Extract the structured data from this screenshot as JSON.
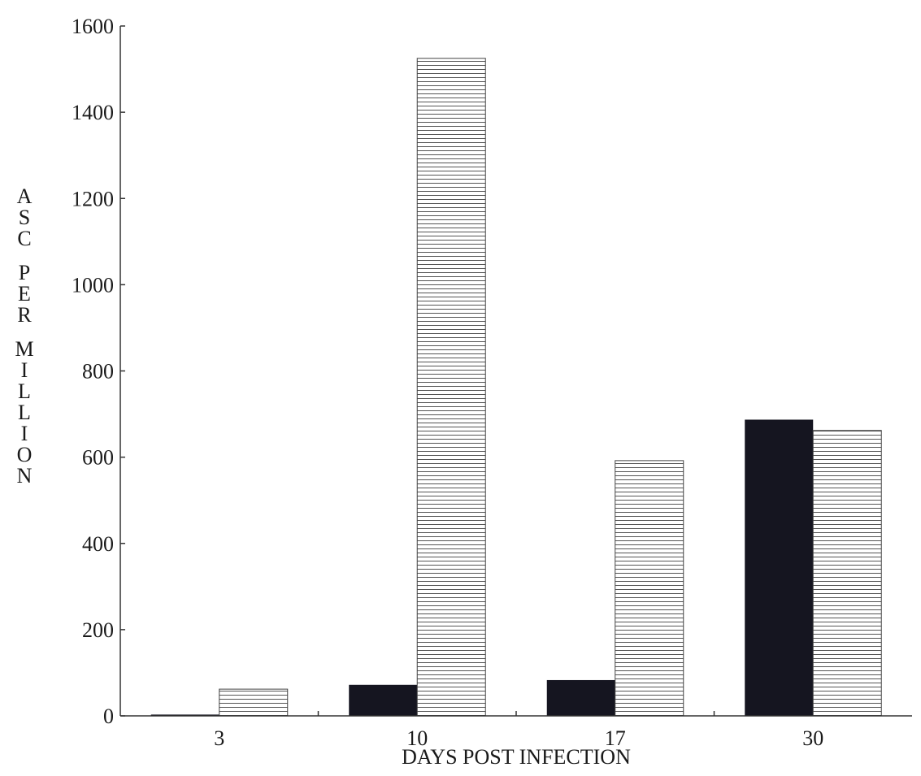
{
  "chart_data": {
    "type": "bar",
    "title": "",
    "xlabel": "DAYS POST INFECTION",
    "ylabel": "ASC PER MILLION",
    "ylim": [
      0,
      1600
    ],
    "yticks": [
      0,
      200,
      400,
      600,
      800,
      1000,
      1200,
      1400,
      1600
    ],
    "grid": false,
    "legend": "none",
    "categories": [
      "3",
      "10",
      "17",
      "30"
    ],
    "series": [
      {
        "values": [
          3,
          72,
          83,
          687
        ],
        "fill": "solid",
        "color": "#151520"
      },
      {
        "values": [
          62,
          1525,
          592,
          662
        ],
        "fill": "horizontal-lines",
        "color": "#444444"
      }
    ]
  }
}
